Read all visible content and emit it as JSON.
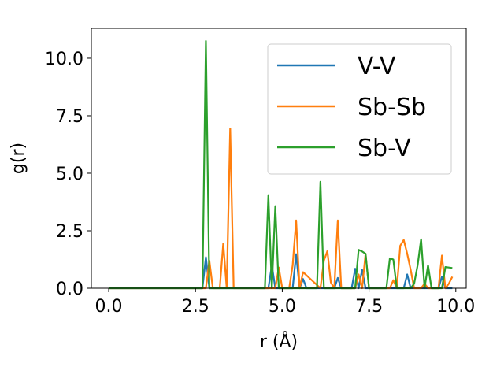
{
  "chart_data": {
    "type": "line",
    "title": "",
    "xlabel": "r (Å)",
    "ylabel": "g(r)",
    "xlim": [
      -0.5,
      10.3
    ],
    "ylim": [
      0,
      11.3
    ],
    "xticks": [
      0.0,
      2.5,
      5.0,
      7.5,
      10.0
    ],
    "xtick_labels": [
      "0.0",
      "2.5",
      "5.0",
      "7.5",
      "10.0"
    ],
    "yticks": [
      0.0,
      2.5,
      5.0,
      7.5,
      10.0
    ],
    "ytick_labels": [
      "0.0",
      "2.5",
      "5.0",
      "7.5",
      "10.0"
    ],
    "legend_position": "top-right",
    "series": [
      {
        "name": "V-V",
        "color": "#1f77b4",
        "x": [
          0.0,
          2.7,
          2.8,
          2.9,
          3.0,
          4.6,
          4.7,
          4.8,
          5.3,
          5.4,
          5.5,
          5.6,
          5.7,
          5.8,
          6.5,
          6.6,
          6.7,
          7.0,
          7.1,
          7.2,
          7.3,
          7.4,
          8.5,
          8.6,
          8.7,
          9.5,
          9.6,
          9.7,
          9.8,
          9.9
        ],
        "y": [
          0.0,
          0.0,
          1.35,
          0.0,
          0.0,
          0.0,
          1.0,
          0.0,
          0.0,
          1.48,
          0.0,
          0.4,
          0.0,
          0.0,
          0.0,
          0.45,
          0.0,
          0.0,
          0.85,
          0.0,
          0.8,
          0.0,
          0.0,
          0.6,
          0.0,
          0.0,
          0.5,
          0.0,
          0.0,
          0.0
        ]
      },
      {
        "name": "Sb-Sb",
        "color": "#ff7f0e",
        "x": [
          0.0,
          2.7,
          2.8,
          2.9,
          3.0,
          3.2,
          3.3,
          3.4,
          3.5,
          3.6,
          4.7,
          4.8,
          4.9,
          5.0,
          5.2,
          5.3,
          5.4,
          5.5,
          5.6,
          6.1,
          6.2,
          6.3,
          6.4,
          6.5,
          6.6,
          6.7,
          6.8,
          7.0,
          7.1,
          7.2,
          7.3,
          7.4,
          7.5,
          8.1,
          8.2,
          8.3,
          8.4,
          8.5,
          8.6,
          8.7,
          8.8,
          8.9,
          9.0,
          9.1,
          9.2,
          9.3,
          9.5,
          9.6,
          9.7,
          9.8,
          9.9
        ],
        "y": [
          0.0,
          0.0,
          0.0,
          1.2,
          0.0,
          0.0,
          1.95,
          0.0,
          6.95,
          0.0,
          0.0,
          0.0,
          0.9,
          0.0,
          0.0,
          1.0,
          2.95,
          0.0,
          0.7,
          0.0,
          1.2,
          1.62,
          0.25,
          0.0,
          2.95,
          0.0,
          0.0,
          0.0,
          0.0,
          0.6,
          0.0,
          1.5,
          0.0,
          0.0,
          0.35,
          0.0,
          1.85,
          2.1,
          1.5,
          0.8,
          0.0,
          0.0,
          0.0,
          0.2,
          0.0,
          0.0,
          0.0,
          1.42,
          0.0,
          0.2,
          0.5
        ]
      },
      {
        "name": "Sb-V",
        "color": "#2ca02c",
        "x": [
          0.0,
          2.6,
          2.7,
          2.8,
          2.9,
          3.0,
          4.5,
          4.6,
          4.7,
          4.8,
          4.9,
          5.0,
          5.8,
          5.9,
          6.0,
          6.1,
          6.2,
          7.1,
          7.2,
          7.3,
          7.4,
          7.5,
          7.6,
          8.0,
          8.1,
          8.2,
          8.3,
          8.6,
          8.7,
          8.8,
          8.9,
          9.0,
          9.1,
          9.2,
          9.3,
          9.4,
          9.5,
          9.6,
          9.7,
          9.8,
          9.9
        ],
        "y": [
          0.0,
          0.0,
          0.0,
          10.75,
          0.0,
          0.0,
          0.0,
          4.05,
          0.0,
          3.57,
          0.0,
          0.0,
          0.0,
          0.0,
          0.0,
          4.63,
          0.0,
          0.0,
          1.67,
          1.6,
          1.5,
          0.0,
          0.0,
          0.0,
          1.3,
          1.25,
          0.0,
          0.0,
          0.0,
          0.2,
          1.0,
          2.13,
          0.0,
          1.0,
          0.0,
          0.0,
          0.0,
          0.0,
          0.92,
          0.9,
          0.88
        ]
      }
    ]
  }
}
